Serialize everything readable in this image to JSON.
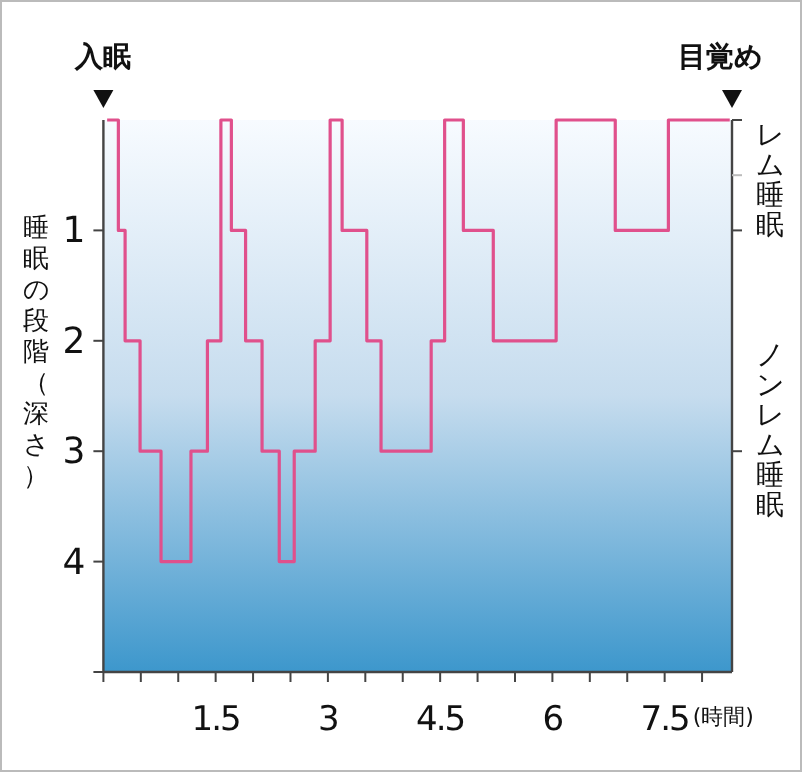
{
  "chart_data": {
    "type": "step",
    "ylabel": "睡眠の段階（深さ）",
    "xlabel": "(時間)",
    "annotations": [
      "入眠",
      "目覚め",
      "レム睡眠",
      "ノンレム睡眠"
    ],
    "x": [
      0.05,
      0.2,
      0.29,
      0.49,
      0.77,
      1.17,
      1.39,
      1.57,
      1.71,
      1.9,
      2.12,
      2.35,
      2.55,
      2.83,
      3.03,
      3.19,
      3.52,
      3.71,
      4.38,
      4.56,
      4.81,
      5.21,
      6.05,
      6.84,
      7.55,
      8.37
    ],
    "series": [
      {
        "color": "#e0508c",
        "values": [
          0,
          1,
          2,
          3,
          4,
          3,
          2,
          0,
          1,
          2,
          3,
          4,
          3,
          2,
          0,
          1,
          2,
          3,
          2,
          0,
          1,
          2,
          0,
          1,
          0,
          0
        ]
      }
    ],
    "xlim": [
      0,
      8.4
    ],
    "xticks": [
      {
        "value": 0,
        "label": null
      },
      {
        "value": 0.5,
        "label": null
      },
      {
        "value": 1,
        "label": null
      },
      1.5,
      {
        "value": 2,
        "label": null
      },
      {
        "value": 2.5,
        "label": null
      },
      3,
      {
        "value": 3.5,
        "label": null
      },
      {
        "value": 4,
        "label": null
      },
      4.5,
      {
        "value": 5,
        "label": null
      },
      {
        "value": 5.5,
        "label": null
      },
      6,
      {
        "value": 6.5,
        "label": null
      },
      {
        "value": 7,
        "label": null
      },
      7.5,
      {
        "value": 8,
        "label": null
      }
    ],
    "ylim": [
      5,
      0
    ],
    "yticks": [
      1,
      2,
      3,
      4,
      {
        "value": 5,
        "label": null
      }
    ],
    "grid": false,
    "marker": "none",
    "line_style": "solid"
  }
}
